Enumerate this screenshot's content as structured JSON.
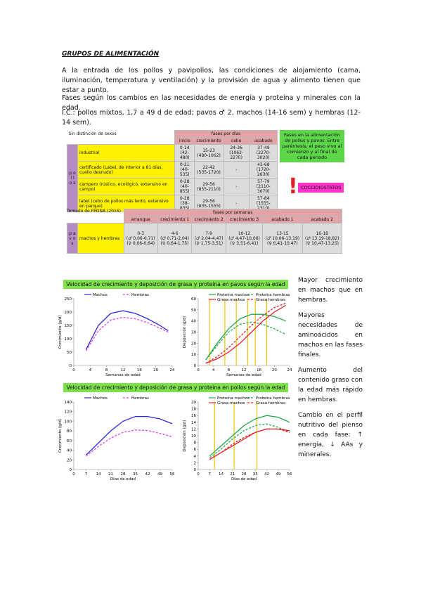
{
  "heading": "GRUPOS DE ALIMENTACIÓN",
  "paragraphs": [
    "A la entrada de los pollos y pavipollos, las condiciones de alojamiento (cama, iluminación, temperatura y ventilación) y la provisión de agua y alimento tienen que estar a punto.",
    "Fases según los cambios en las necesidades de energía y proteína y minerales con la edad.",
    "I.C.: pollos mixtos, 1,7 a 49 d de edad; pavos ♂ 2, machos (14-16 sem) y hembras (12-14 sem)."
  ],
  "table1": {
    "corner": "Sin distinción de sexos",
    "group_header": "fases por días",
    "side": "p o l l o s",
    "columns": [
      "inicio",
      "crecimiento",
      "cebo",
      "acabado"
    ],
    "rows": [
      {
        "label": "industrial",
        "cells": [
          [
            "0-14",
            "(42-480)"
          ],
          [
            "15-23",
            "(480-1062)"
          ],
          [
            "24-36",
            "(1062-2270)"
          ],
          [
            "37-49",
            "(2270-3020)"
          ]
        ]
      },
      {
        "label": "certificado (Label, de interior a 81 días, cuello desnudo)",
        "cells": [
          [
            "0-21",
            "(40-535)"
          ],
          [
            "22-42",
            "(535-1720)"
          ],
          [
            "-"
          ],
          [
            "43-68",
            "(1720-2630)"
          ]
        ]
      },
      {
        "label": "campero (rústico, ecológico, extensivo en campo)",
        "cells": [
          [
            "0-28",
            "(40-855)"
          ],
          [
            "29-56",
            "(855-2110)"
          ],
          [
            "-"
          ],
          [
            "57-79",
            "(2110-3070)"
          ]
        ]
      },
      {
        "label": "label (cebo de pollos más lento, extensivo en parque)",
        "cells": [
          [
            "0-28",
            "(38-835)"
          ],
          [
            "29-56",
            "(835-1555)"
          ],
          [
            "-"
          ],
          [
            "57-84",
            "(1555-2310)"
          ]
        ]
      }
    ]
  },
  "note": "Fases en la alimentación de pollos y pavos. Entre paréntesis, el peso vivo al comienzo y al final de cada periodo",
  "badge": "COCCIDIOSTATOS",
  "table2": {
    "source": "Tomado de FEDNA (2016)",
    "group_header": "fases por semanas",
    "side": "p a v o s",
    "columns": [
      "arranque",
      "crecimiento 1",
      "crecimiento 2",
      "crecimiento 3",
      "acabado 1",
      "acabado 2"
    ],
    "rows": [
      {
        "label": "machos y hembras",
        "cells": [
          [
            "0-3",
            "(♂ 0,06-0,71)",
            "(♀ 0,06-0,64)"
          ],
          [
            "4-6",
            "(♂ 0,71-2,04)",
            "(♀ 0,64-1,75)"
          ],
          [
            "7-9",
            "(♂ 2,04-4,47)",
            "(♀ 1,75-3,51)"
          ],
          [
            "10-12",
            "(♂ 4,47-10,06)",
            "(♀ 3,51-6,41)"
          ],
          [
            "13-15",
            "(♂ 10,06-13,19)",
            "(♀ 6,41-10,47)"
          ],
          [
            "16-18",
            "(♂ 13,19-18,82)",
            "(♀ 10,47-13,25)"
          ]
        ]
      }
    ]
  },
  "banners": [
    "Velocidad de crecimiento y deposición de grasa y proteína en pavos según la edad",
    "Velocidad de crecimiento y deposición de grasa y proteína en pollos según la edad"
  ],
  "charts": [
    {
      "type": "line",
      "x": [
        3,
        6,
        9,
        12,
        15,
        18,
        21,
        23
      ],
      "xlim": [
        0,
        24
      ],
      "xticks": [
        0,
        4,
        8,
        12,
        16,
        20,
        24
      ],
      "ylim": [
        0,
        250
      ],
      "yticks": [
        0,
        50,
        100,
        150,
        200,
        250
      ],
      "xlabel": "Semanas de edad",
      "ylabel": "Crecimiento (g/d)",
      "series": [
        {
          "name": "Machos",
          "color": "#2b2bd9",
          "dash": false,
          "values": [
            60,
            150,
            195,
            205,
            195,
            175,
            150,
            130
          ]
        },
        {
          "name": "Hembras",
          "color": "#e040e0",
          "dash": true,
          "values": [
            55,
            130,
            170,
            180,
            175,
            160,
            140,
            125
          ]
        }
      ]
    },
    {
      "type": "line",
      "x": [
        2,
        5,
        8,
        11,
        14,
        17,
        20,
        23
      ],
      "xlim": [
        0,
        24
      ],
      "xticks": [
        0,
        4,
        8,
        12,
        16,
        20,
        24
      ],
      "ylim": [
        0,
        60
      ],
      "yticks": [
        0,
        10,
        20,
        30,
        40,
        50,
        60
      ],
      "xlabel": "Semanas de edad",
      "ylabel": "Deposición (g/d)",
      "vlines": [
        3,
        7,
        10,
        13,
        15,
        18
      ],
      "series": [
        {
          "name": "Proteína machos",
          "color": "#22a84a",
          "dash": false,
          "values": [
            5,
            20,
            33,
            42,
            46,
            46,
            44,
            40
          ]
        },
        {
          "name": "Proteína hembras",
          "color": "#22a84a",
          "dash": true,
          "values": [
            5,
            18,
            30,
            37,
            39,
            37,
            33,
            28
          ]
        },
        {
          "name": "Grasa machos",
          "color": "#e0202a",
          "dash": false,
          "values": [
            2,
            6,
            12,
            20,
            30,
            40,
            48,
            54
          ]
        },
        {
          "name": "Grasa hembras",
          "color": "#e0202a",
          "dash": true,
          "values": [
            2,
            8,
            16,
            26,
            36,
            45,
            52,
            56
          ]
        }
      ]
    },
    {
      "type": "line",
      "x": [
        7,
        14,
        21,
        28,
        35,
        42,
        49,
        56
      ],
      "xlim": [
        0,
        56
      ],
      "xticks": [
        0,
        7,
        14,
        21,
        28,
        35,
        42,
        49,
        56
      ],
      "ylim": [
        0,
        140
      ],
      "yticks": [
        0,
        20,
        40,
        60,
        80,
        100,
        120,
        140
      ],
      "xlabel": "Días de edad",
      "ylabel": "Crecimiento (g/d)",
      "series": [
        {
          "name": "Machos",
          "color": "#2b2bd9",
          "dash": false,
          "values": [
            30,
            55,
            80,
            100,
            110,
            110,
            105,
            95
          ]
        },
        {
          "name": "Hembras",
          "color": "#e040e0",
          "dash": true,
          "values": [
            28,
            48,
            65,
            77,
            82,
            81,
            75,
            68
          ]
        }
      ]
    },
    {
      "type": "line",
      "x": [
        7,
        14,
        21,
        28,
        35,
        42,
        49,
        56
      ],
      "xlim": [
        0,
        56
      ],
      "xticks": [
        0,
        7,
        14,
        21,
        28,
        35,
        42,
        49,
        56
      ],
      "ylim": [
        0,
        20
      ],
      "yticks": [
        0,
        2,
        4,
        6,
        8,
        10,
        12,
        14,
        16,
        18,
        20
      ],
      "xlabel": "Días de edad",
      "ylabel": "Deposición (g/d)",
      "vlines": [
        10,
        22,
        36
      ],
      "series": [
        {
          "name": "Proteína machos",
          "color": "#22a84a",
          "dash": false,
          "values": [
            4,
            7,
            10,
            13,
            15,
            16,
            15.5,
            14
          ]
        },
        {
          "name": "Proteína hembras",
          "color": "#22a84a",
          "dash": true,
          "values": [
            3.5,
            6,
            9,
            11.5,
            13,
            13.5,
            12.5,
            11
          ]
        },
        {
          "name": "Grasa machos",
          "color": "#e0202a",
          "dash": false,
          "values": [
            3,
            5,
            7,
            9,
            11,
            12,
            12,
            11.5
          ]
        },
        {
          "name": "Grasa hembras",
          "color": "#e0202a",
          "dash": true,
          "values": [
            3,
            5,
            7.5,
            9.5,
            11,
            12,
            12,
            11
          ]
        }
      ]
    }
  ],
  "side_notes": [
    "Mayor crecimiento en machos que en hembras.",
    "Mayores necesidades de aminoácidos en machos en las fases finales.",
    "Aumento del contenido graso con la edad más rápido en hembras.",
    "Cambio en el perfil nutritivo del pienso en cada fase: ↑ energía, ↓ AAs y minerales."
  ]
}
